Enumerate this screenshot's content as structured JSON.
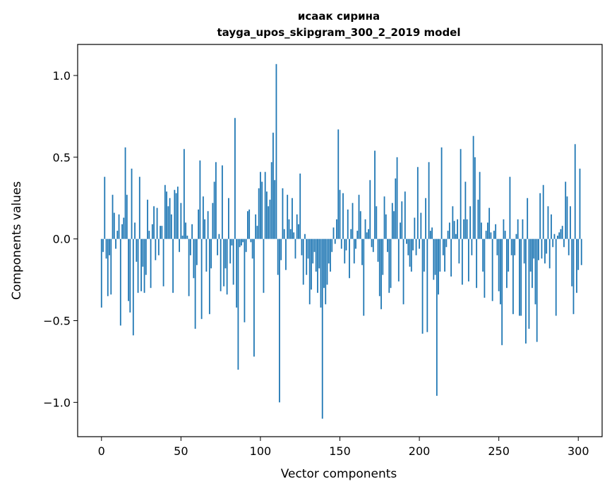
{
  "chart_data": {
    "type": "bar",
    "title": "исаак сирина",
    "subtitle": "tayga_upos_skipgram_300_2_2019 model",
    "xlabel": "Vector components",
    "ylabel": "Components values",
    "xlim": [
      -15,
      315
    ],
    "ylim": [
      -1.21,
      1.19
    ],
    "xticks": [
      0,
      50,
      100,
      150,
      200,
      250,
      300
    ],
    "xtick_labels": [
      "0",
      "50",
      "100",
      "150",
      "200",
      "250",
      "300"
    ],
    "yticks": [
      -1.0,
      -0.5,
      0.0,
      0.5,
      1.0
    ],
    "ytick_labels": [
      "−1.0",
      "−0.5",
      "0.0",
      "0.5",
      "1.0"
    ],
    "grid": false,
    "bar_color": "#1f77b4",
    "values": [
      -0.42,
      -0.08,
      0.38,
      -0.12,
      -0.35,
      -0.1,
      -0.34,
      0.27,
      0.16,
      -0.06,
      0.05,
      0.15,
      -0.53,
      0.09,
      0.13,
      0.56,
      0.27,
      -0.38,
      -0.45,
      0.43,
      -0.59,
      0.1,
      -0.14,
      -0.33,
      0.38,
      -0.32,
      -0.17,
      -0.33,
      -0.22,
      0.24,
      0.05,
      -0.3,
      0.09,
      0.2,
      -0.13,
      0.19,
      -0.1,
      0.08,
      0.08,
      -0.29,
      0.33,
      0.29,
      0.2,
      0.25,
      0.15,
      -0.33,
      0.3,
      0.28,
      0.32,
      -0.08,
      0.22,
      0.02,
      0.55,
      0.1,
      0.02,
      -0.35,
      -0.1,
      0.09,
      -0.24,
      -0.55,
      -0.16,
      0.18,
      0.48,
      -0.49,
      0.26,
      0.12,
      -0.2,
      0.17,
      -0.46,
      -0.18,
      0.22,
      0.35,
      0.47,
      -0.1,
      0.03,
      -0.32,
      0.45,
      -0.29,
      -0.18,
      -0.34,
      0.25,
      -0.15,
      -0.04,
      -0.28,
      0.74,
      -0.42,
      -0.8,
      -0.05,
      -0.04,
      -0.02,
      -0.51,
      -0.08,
      0.17,
      0.18,
      -0.02,
      -0.12,
      -0.72,
      0.15,
      0.08,
      0.31,
      0.41,
      0.35,
      -0.33,
      0.41,
      0.29,
      0.2,
      0.24,
      0.47,
      0.65,
      0.36,
      1.07,
      -0.22,
      -1.0,
      -0.13,
      0.31,
      0.06,
      -0.19,
      0.27,
      0.12,
      0.06,
      0.25,
      0.04,
      -0.12,
      0.15,
      0.09,
      0.4,
      -0.1,
      -0.28,
      0.03,
      -0.22,
      -0.12,
      -0.4,
      -0.31,
      -0.15,
      -0.08,
      -0.2,
      -0.33,
      -0.18,
      -0.42,
      -1.1,
      -0.3,
      -0.4,
      -0.28,
      -0.15,
      -0.2,
      -0.08,
      0.07,
      -0.03,
      0.12,
      0.67,
      0.3,
      -0.06,
      0.28,
      -0.15,
      -0.07,
      0.18,
      -0.24,
      0.06,
      0.22,
      -0.15,
      -0.06,
      0.05,
      0.27,
      0.17,
      -0.16,
      -0.47,
      0.12,
      0.04,
      0.06,
      0.36,
      -0.05,
      -0.08,
      0.54,
      0.2,
      -0.14,
      -0.35,
      -0.43,
      -0.22,
      0.26,
      0.15,
      -0.08,
      -0.33,
      -0.3,
      0.22,
      0.17,
      0.37,
      0.5,
      -0.26,
      0.1,
      0.23,
      -0.4,
      0.29,
      -0.03,
      -0.1,
      -0.17,
      -0.2,
      -0.07,
      0.13,
      -0.1,
      0.44,
      -0.06,
      0.16,
      -0.58,
      -0.2,
      0.25,
      -0.57,
      0.47,
      0.05,
      0.07,
      -0.25,
      -0.22,
      -0.96,
      -0.34,
      -0.2,
      0.56,
      -0.1,
      -0.2,
      -0.05,
      0.05,
      0.1,
      -0.23,
      0.2,
      0.11,
      0.03,
      0.12,
      -0.15,
      0.55,
      -0.28,
      0.12,
      0.35,
      0.12,
      -0.26,
      0.2,
      -0.1,
      0.63,
      0.5,
      -0.3,
      0.24,
      0.41,
      0.1,
      -0.2,
      -0.36,
      0.05,
      0.1,
      0.19,
      0.04,
      -0.38,
      0.05,
      0.09,
      -0.1,
      -0.32,
      -0.4,
      -0.65,
      0.12,
      0.05,
      -0.3,
      -0.2,
      0.38,
      -0.1,
      -0.46,
      -0.1,
      0.03,
      0.12,
      -0.47,
      -0.47,
      0.12,
      -0.15,
      -0.64,
      0.25,
      -0.55,
      -0.2,
      -0.3,
      -0.12,
      -0.4,
      -0.63,
      -0.13,
      0.28,
      -0.12,
      0.33,
      -0.15,
      -0.09,
      0.2,
      -0.18,
      0.15,
      -0.05,
      0.03,
      -0.47,
      0.02,
      0.04,
      0.06,
      0.08,
      -0.05,
      0.35,
      0.26,
      -0.1,
      0.2,
      -0.29,
      -0.46,
      0.58,
      -0.33,
      -0.19,
      0.43,
      -0.16
    ]
  }
}
